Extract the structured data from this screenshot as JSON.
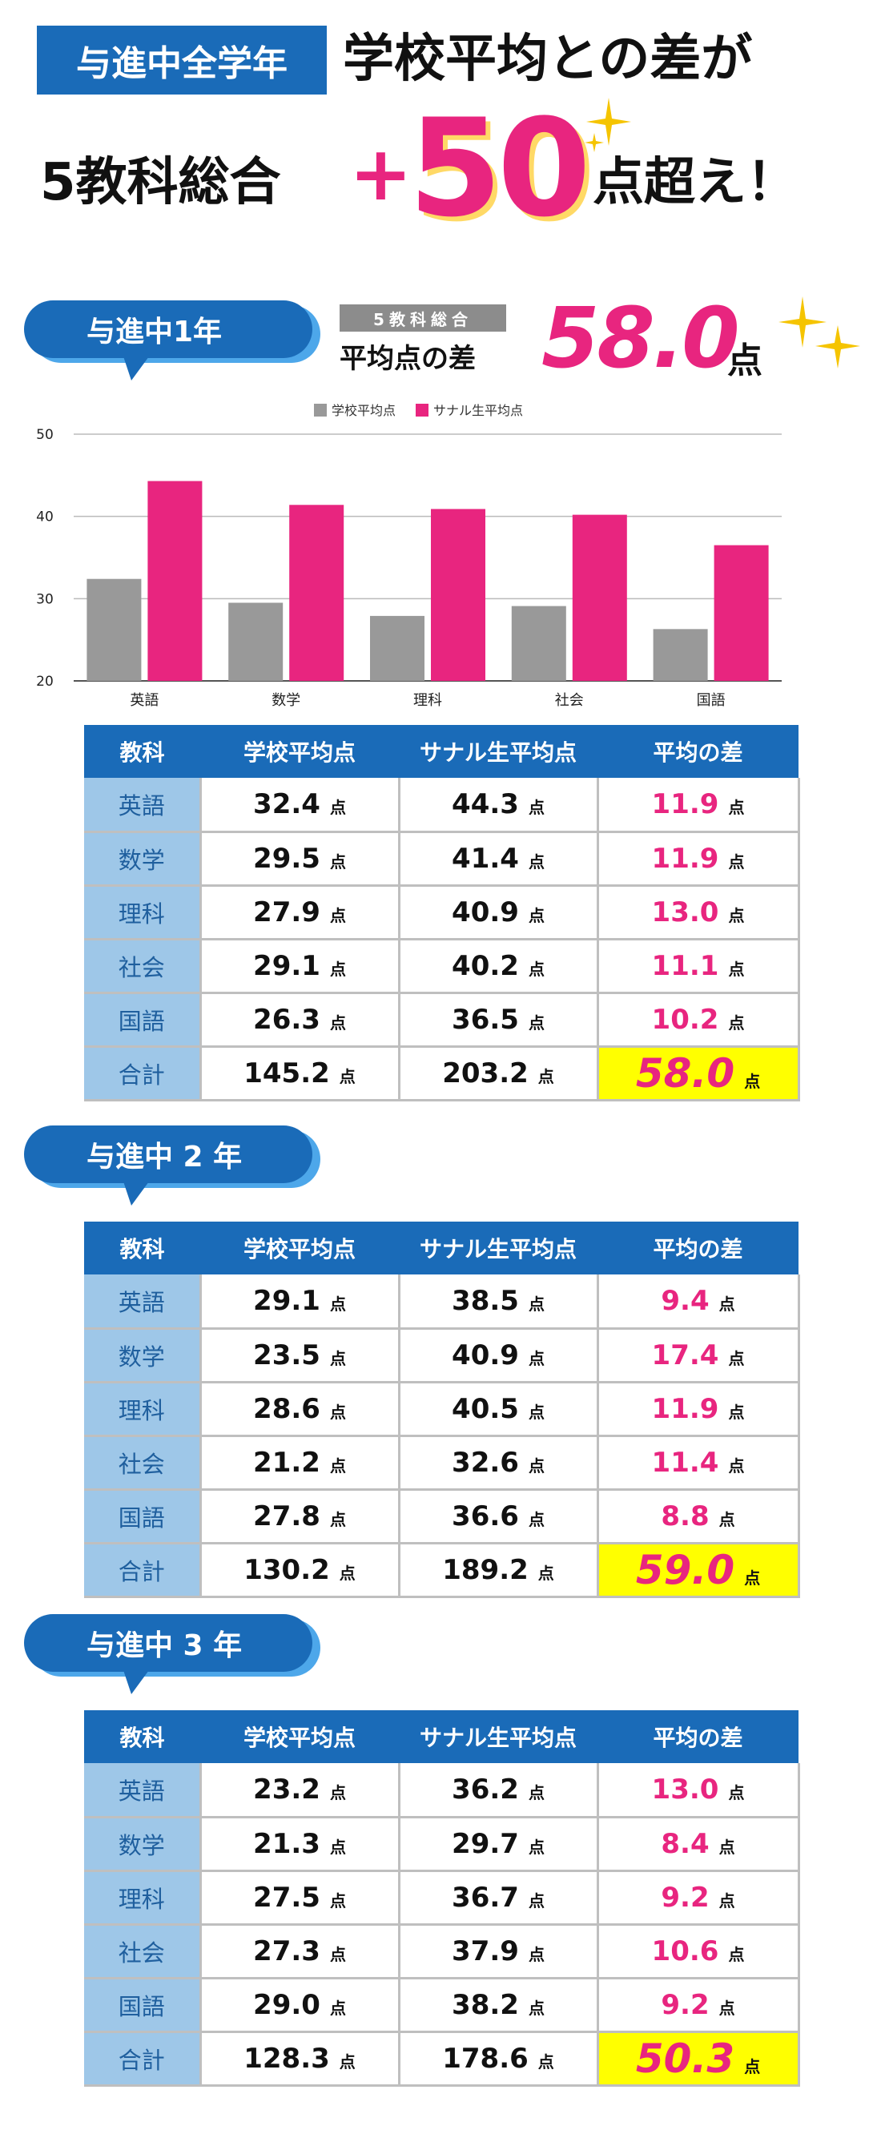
{
  "header": {
    "tag": "与進中全学年",
    "line1": "学校平均との差が",
    "line2_left": "5教科総合",
    "plus": "+",
    "big_number": "50",
    "line2_right": "点超え！"
  },
  "colors": {
    "brand_blue": "#1a6bb8",
    "accent_pink": "#e8257f",
    "school_gray": "#999999",
    "highlight_yellow": "#ffff00"
  },
  "summary": {
    "tag": "5教科総合",
    "label": "平均点の差",
    "value": "58.0",
    "unit": "点"
  },
  "chart_data": {
    "type": "bar",
    "categories": [
      "英語",
      "数学",
      "理科",
      "社会",
      "国語"
    ],
    "series": [
      {
        "name": "学校平均点",
        "values": [
          32.4,
          29.5,
          27.9,
          29.1,
          26.3
        ],
        "color": "#999999"
      },
      {
        "name": "サナル生平均点",
        "values": [
          44.3,
          41.4,
          40.9,
          40.2,
          36.5
        ],
        "color": "#e8257f"
      }
    ],
    "ylim": [
      20,
      50
    ],
    "yticks": [
      20,
      30,
      40,
      50
    ],
    "grid": true,
    "legend": "top-center"
  },
  "headers": [
    "教科",
    "学校平均点",
    "サナル生平均点",
    "平均の差"
  ],
  "unit": "点",
  "years": [
    {
      "label": "与進中1年",
      "rows": [
        {
          "subject": "英語",
          "school": "32.4",
          "sanaru": "44.3",
          "diff": "11.9"
        },
        {
          "subject": "数学",
          "school": "29.5",
          "sanaru": "41.4",
          "diff": "11.9"
        },
        {
          "subject": "理科",
          "school": "27.9",
          "sanaru": "40.9",
          "diff": "13.0"
        },
        {
          "subject": "社会",
          "school": "29.1",
          "sanaru": "40.2",
          "diff": "11.1"
        },
        {
          "subject": "国語",
          "school": "26.3",
          "sanaru": "36.5",
          "diff": "10.2"
        },
        {
          "subject": "合計",
          "school": "145.2",
          "sanaru": "203.2",
          "diff": "58.0"
        }
      ]
    },
    {
      "label": "与進中 2 年",
      "rows": [
        {
          "subject": "英語",
          "school": "29.1",
          "sanaru": "38.5",
          "diff": "9.4"
        },
        {
          "subject": "数学",
          "school": "23.5",
          "sanaru": "40.9",
          "diff": "17.4"
        },
        {
          "subject": "理科",
          "school": "28.6",
          "sanaru": "40.5",
          "diff": "11.9"
        },
        {
          "subject": "社会",
          "school": "21.2",
          "sanaru": "32.6",
          "diff": "11.4"
        },
        {
          "subject": "国語",
          "school": "27.8",
          "sanaru": "36.6",
          "diff": "8.8"
        },
        {
          "subject": "合計",
          "school": "130.2",
          "sanaru": "189.2",
          "diff": "59.0"
        }
      ]
    },
    {
      "label": "与進中 3 年",
      "rows": [
        {
          "subject": "英語",
          "school": "23.2",
          "sanaru": "36.2",
          "diff": "13.0"
        },
        {
          "subject": "数学",
          "school": "21.3",
          "sanaru": "29.7",
          "diff": "8.4"
        },
        {
          "subject": "理科",
          "school": "27.5",
          "sanaru": "36.7",
          "diff": "9.2"
        },
        {
          "subject": "社会",
          "school": "27.3",
          "sanaru": "37.9",
          "diff": "10.6"
        },
        {
          "subject": "国語",
          "school": "29.0",
          "sanaru": "38.2",
          "diff": "9.2"
        },
        {
          "subject": "合計",
          "school": "128.3",
          "sanaru": "178.6",
          "diff": "50.3"
        }
      ]
    }
  ]
}
